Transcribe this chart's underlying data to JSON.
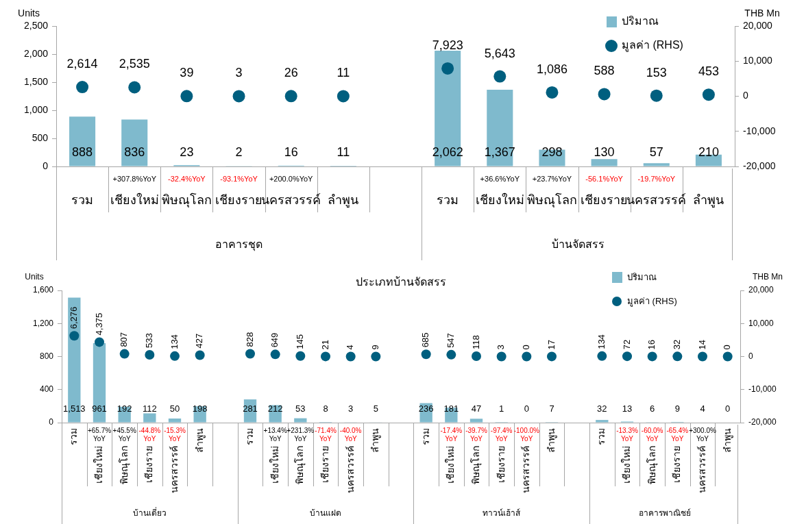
{
  "chart_data": [
    {
      "type": "bar",
      "ylabel": "Units",
      "y2label": "THB Mn",
      "legend": "top right",
      "grid": false,
      "marker": "circle",
      "categories": [
        "รวม",
        "+307.8%YoY\nเชียงใหม่",
        "-32.4%YoY\nพิษณุโลก",
        "-93.1%YoY\nเชียงราย",
        "+200.0%YoY\nนครสวรรค์",
        "ลำพูน",
        null,
        "รวม",
        "+36.6%YoY\nเชียงใหม่",
        "+23.7%YoY\nพิษณุโลก",
        "-56.1%YoY\nเชียงราย",
        "-19.7%YoY\nนครสวรรค์",
        "ลำพูน"
      ],
      "annotations": [
        "อาคารชุด",
        "บ้านจัดสรร"
      ],
      "ylim": [
        0,
        2500
      ],
      "yticks": [
        0,
        500,
        {
          "value": 1000,
          "label": "1,000"
        },
        {
          "value": 1500,
          "label": "1,500"
        },
        {
          "value": 2000,
          "label": "2,000"
        },
        {
          "value": 2500,
          "label": "2,500"
        }
      ],
      "y2lim": [
        -20000,
        20000
      ],
      "y2ticks": [
        {
          "value": -20000,
          "label": "-20,000"
        },
        {
          "value": -10000,
          "label": "-10,000"
        },
        0,
        {
          "value": 10000,
          "label": "10,000"
        },
        {
          "value": 20000,
          "label": "20,000"
        }
      ],
      "series": [
        {
          "name": "ปริมาณ",
          "color": "#7fbacd",
          "values": [
            888,
            836,
            23,
            2,
            16,
            11,
            null,
            2062,
            1367,
            298,
            130,
            57,
            210
          ],
          "value_labels": [
            "888",
            "836",
            "23",
            "2",
            "16",
            "11",
            null,
            "2,062",
            "1,367",
            "298",
            "130",
            "57",
            "210"
          ]
        },
        {
          "name": "มูลค่า (RHS)",
          "type": "scatter",
          "axis": "y2",
          "color": "#005f7f",
          "values": [
            2614,
            2535,
            39,
            3,
            26,
            11,
            null,
            7923,
            5643,
            1086,
            588,
            153,
            453
          ],
          "value_labels": [
            "2,614",
            "2,535",
            "39",
            "3",
            "26",
            "11",
            null,
            "7,923",
            "5,643",
            "1,086",
            "588",
            "153",
            "453"
          ]
        }
      ]
    },
    {
      "type": "bar",
      "title": "ประเภทบ้านจัดสรร",
      "ylabel": "Units",
      "y2label": "THB Mn",
      "legend": "top right",
      "grid": false,
      "marker": "circle",
      "categories": [
        "รวม",
        "+65.7%\nYoY\nเชียงใหม่",
        "+45.5%\nYoY\nพิษณุโลก",
        "-44.8%\nYoY\nเชียงราย",
        "-15.3%\nYoY\nนครสวรรค์",
        "ลำพูน",
        null,
        "รวม",
        "+13.4%\nYoY\nเชียงใหม่",
        "+231.3%\nYoY\nพิษณุโลก",
        "-71.4%\nYoY\nเชียงราย",
        "-40.0%\nYoY\nนครสวรรค์",
        "ลำพูน",
        null,
        "รวม",
        "-17.4%\nYoY\nเชียงใหม่",
        "-39.7%\nYoY\nพิษณุโลก",
        "-97.4%\nYoY\nเชียงราย",
        "-100.0%\nYoY\nนครสวรรค์",
        "ลำพูน",
        null,
        "รวม",
        "-13.3%\nYoY\nเชียงใหม่",
        "-60.0%\nYoY\nพิษณุโลก",
        "-65.4%\nYoY\nเชียงราย",
        "+300.0%\nYoY\nนครสวรรค์",
        "ลำพูน"
      ],
      "annotations": [
        "บ้านเดี่ยว",
        "บ้านแฝด",
        "ทาวน์เฮ้าส์",
        "อาคารพาณิชย์"
      ],
      "ylim": [
        0,
        1600
      ],
      "yticks": [
        0,
        400,
        800,
        {
          "value": 1200,
          "label": "1,200"
        },
        {
          "value": 1600,
          "label": "1,600"
        }
      ],
      "y2lim": [
        -20000,
        20000
      ],
      "y2ticks": [
        {
          "value": -20000,
          "label": "-20,000"
        },
        {
          "value": -10000,
          "label": "-10,000"
        },
        0,
        {
          "value": 10000,
          "label": "10,000"
        },
        {
          "value": 20000,
          "label": "20,000"
        }
      ],
      "series": [
        {
          "name": "ปริมาณ",
          "color": "#7fbacd",
          "values": [
            1513,
            961,
            192,
            112,
            50,
            198,
            null,
            281,
            212,
            53,
            8,
            3,
            5,
            null,
            236,
            181,
            47,
            1,
            0,
            7,
            null,
            32,
            13,
            6,
            9,
            4,
            0
          ],
          "value_labels": [
            "1,513",
            "961",
            "192",
            "112",
            "50",
            "198",
            null,
            "281",
            "212",
            "53",
            "8",
            "3",
            "5",
            null,
            "236",
            "181",
            "47",
            "1",
            "0",
            "7",
            null,
            "32",
            "13",
            "6",
            "9",
            "4",
            "0"
          ]
        },
        {
          "name": "มูลค่า (RHS)",
          "type": "scatter",
          "axis": "y2",
          "color": "#005f7f",
          "values": [
            6276,
            4375,
            807,
            533,
            134,
            427,
            null,
            828,
            649,
            145,
            21,
            4,
            9,
            null,
            685,
            547,
            118,
            3,
            0,
            17,
            null,
            134,
            72,
            16,
            32,
            14,
            0
          ],
          "value_labels": [
            "6,276",
            "4,375",
            "807",
            "533",
            "134",
            "427",
            null,
            "828",
            "649",
            "145",
            "21",
            "4",
            "9",
            null,
            "685",
            "547",
            "118",
            "3",
            "0",
            "17",
            null,
            "134",
            "72",
            "16",
            "32",
            "14",
            "0"
          ]
        }
      ]
    }
  ]
}
